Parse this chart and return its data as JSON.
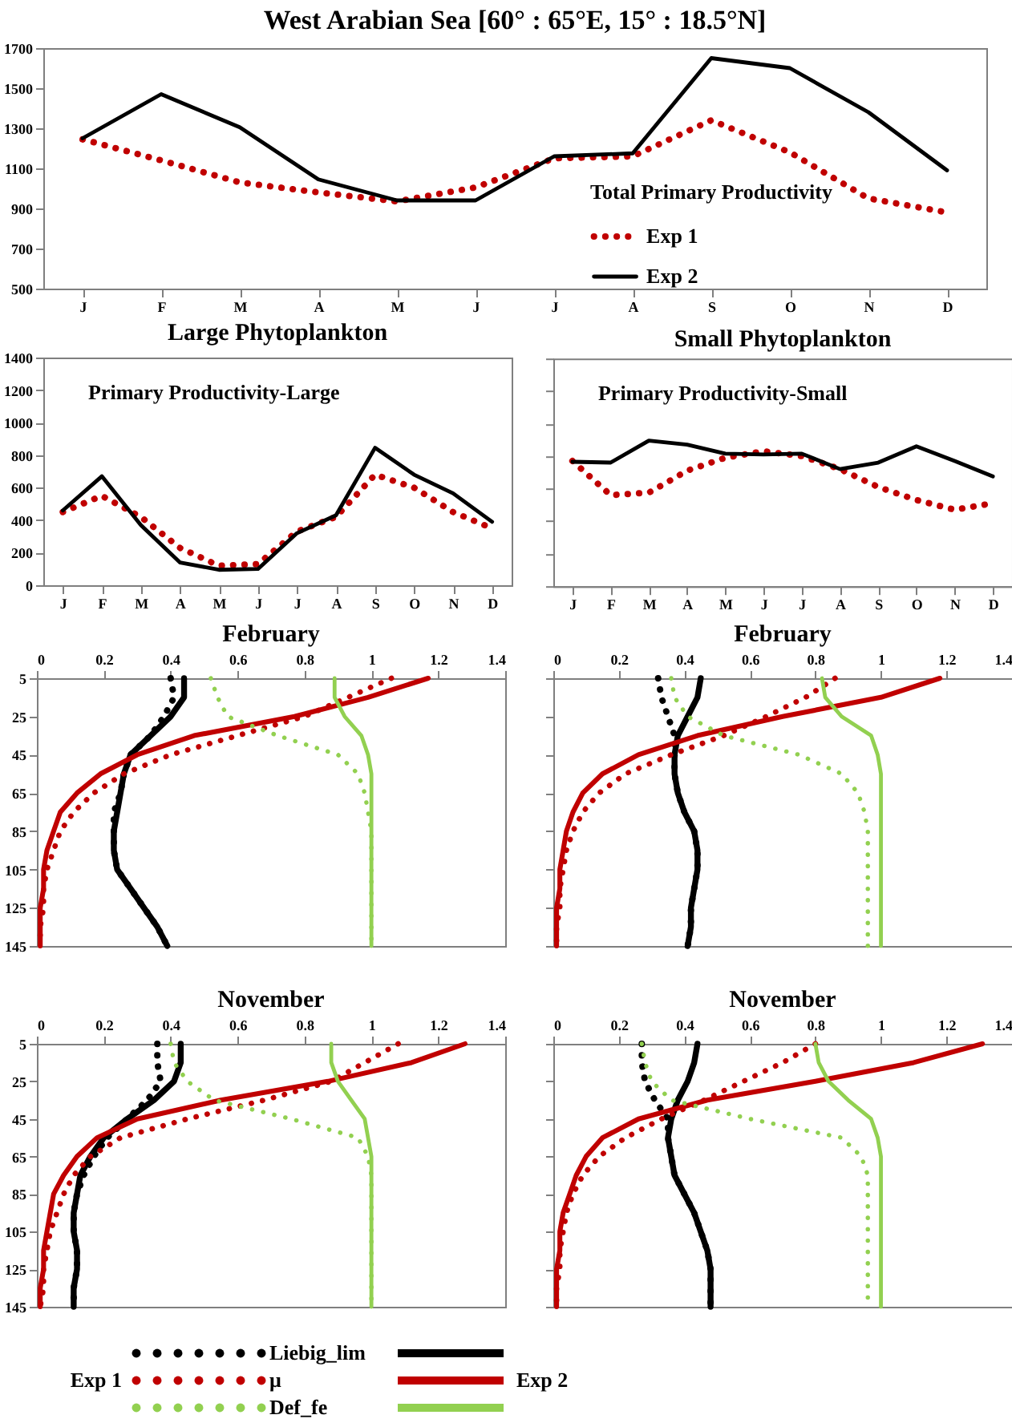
{
  "chart_data": [
    {
      "type": "line",
      "title": "West Arabian Sea [60° : 65°E, 15° : 18.5°N]",
      "legend_title": "Total Primary Productivity",
      "legend": "bottom right",
      "categories": [
        "J",
        "F",
        "M",
        "A",
        "M",
        "J",
        "J",
        "A",
        "S",
        "O",
        "N",
        "D"
      ],
      "ylim": [
        500,
        1700
      ],
      "yticks": [
        500,
        700,
        900,
        1100,
        1300,
        1500,
        1700
      ],
      "series": [
        {
          "name": "Exp 1",
          "color": "#c00000",
          "line_style": "dotted",
          "values": [
            1245,
            1140,
            1030,
            980,
            935,
            1005,
            1150,
            1160,
            1340,
            1180,
            950,
            880
          ]
        },
        {
          "name": "Exp 2",
          "color": "#000000",
          "line_style": "solid",
          "values": [
            1250,
            1470,
            1305,
            1045,
            940,
            940,
            1160,
            1175,
            1650,
            1600,
            1380,
            1090
          ]
        }
      ]
    },
    {
      "type": "line",
      "title": "Large Phytoplankton",
      "annotations": [
        "Primary Productivity-Large"
      ],
      "categories": [
        "J",
        "F",
        "M",
        "A",
        "M",
        "J",
        "J",
        "A",
        "S",
        "O",
        "N",
        "D"
      ],
      "ylim": [
        0,
        1400
      ],
      "yticks": [
        0,
        200,
        400,
        600,
        800,
        1000,
        1200,
        1400
      ],
      "series": [
        {
          "color": "#c00000",
          "line_style": "dotted",
          "values": [
            450,
            550,
            420,
            230,
            120,
            130,
            330,
            420,
            680,
            600,
            450,
            350
          ]
        },
        {
          "color": "#000000",
          "line_style": "solid",
          "values": [
            460,
            670,
            370,
            140,
            95,
            100,
            320,
            430,
            845,
            680,
            565,
            390
          ]
        }
      ]
    },
    {
      "type": "line",
      "title": "Small Phytoplankton",
      "annotations": [
        "Primary Productivity-Small"
      ],
      "tick_labels": "x",
      "categories": [
        "J",
        "F",
        "M",
        "A",
        "M",
        "J",
        "J",
        "A",
        "S",
        "O",
        "N",
        "D"
      ],
      "ylim": [
        0,
        1400
      ],
      "yticks": [
        0,
        200,
        400,
        600,
        800,
        1000,
        1200,
        1400
      ],
      "series": [
        {
          "color": "#c00000",
          "line_style": "dotted",
          "values": [
            770,
            560,
            575,
            710,
            790,
            830,
            800,
            720,
            610,
            530,
            470,
            510
          ]
        },
        {
          "color": "#000000",
          "line_style": "solid",
          "values": [
            765,
            760,
            895,
            870,
            815,
            810,
            815,
            720,
            760,
            860,
            770,
            675
          ]
        }
      ]
    },
    {
      "type": "line",
      "title": "February",
      "xlim": [
        0,
        1.4
      ],
      "xticks": [
        0,
        0.2,
        0.4,
        0.6,
        0.8,
        1,
        1.2,
        1.4
      ],
      "ylim": [
        145,
        5
      ],
      "yticks": [
        5,
        25,
        45,
        65,
        85,
        105,
        125,
        145
      ],
      "series": [
        {
          "color": "#000000",
          "line_style": "dotted",
          "x": [
            0.4,
            0.41,
            0.38,
            0.34,
            0.28,
            0.26,
            0.25,
            0.23,
            0.23,
            0.23,
            0.24,
            0.28,
            0.32,
            0.36,
            0.39
          ],
          "values": [
            5,
            15,
            25,
            35,
            45,
            55,
            65,
            75,
            85,
            95,
            105,
            115,
            125,
            135,
            145
          ]
        },
        {
          "color": "#000000",
          "line_style": "solid",
          "x": [
            0.44,
            0.44,
            0.4,
            0.34,
            0.28,
            0.26,
            0.25,
            0.24,
            0.23,
            0.23,
            0.24,
            0.28,
            0.32,
            0.36,
            0.39
          ],
          "values": [
            5,
            15,
            25,
            35,
            45,
            55,
            65,
            75,
            85,
            95,
            105,
            115,
            125,
            135,
            145
          ]
        },
        {
          "color": "#c00000",
          "line_style": "dotted",
          "x": [
            1.06,
            0.93,
            0.8,
            0.6,
            0.4,
            0.26,
            0.17,
            0.11,
            0.07,
            0.05,
            0.03,
            0.02,
            0.02,
            0.01,
            0.01
          ],
          "values": [
            5,
            15,
            25,
            35,
            45,
            55,
            65,
            75,
            85,
            95,
            105,
            115,
            125,
            135,
            145
          ]
        },
        {
          "color": "#c00000",
          "line_style": "solid",
          "x": [
            1.17,
            0.99,
            0.77,
            0.47,
            0.3,
            0.19,
            0.12,
            0.07,
            0.05,
            0.03,
            0.02,
            0.02,
            0.01,
            0.01,
            0.01
          ],
          "values": [
            5,
            15,
            25,
            35,
            45,
            55,
            65,
            75,
            85,
            95,
            105,
            115,
            125,
            135,
            145
          ]
        },
        {
          "color": "#92d050",
          "line_style": "dotted",
          "x": [
            0.52,
            0.54,
            0.57,
            0.72,
            0.9,
            0.96,
            0.98,
            0.99,
            1,
            1,
            1,
            1,
            1,
            1,
            1
          ],
          "values": [
            5,
            15,
            25,
            35,
            45,
            55,
            65,
            75,
            85,
            95,
            105,
            115,
            125,
            135,
            145
          ]
        },
        {
          "color": "#92d050",
          "line_style": "solid",
          "x": [
            0.89,
            0.89,
            0.92,
            0.97,
            0.99,
            1,
            1,
            1,
            1,
            1,
            1,
            1,
            1,
            1,
            1
          ],
          "values": [
            5,
            15,
            25,
            35,
            45,
            55,
            65,
            75,
            85,
            95,
            105,
            115,
            125,
            135,
            145
          ]
        }
      ]
    },
    {
      "type": "line",
      "title": "February",
      "tick_labels": "x",
      "xlim": [
        0,
        1.4
      ],
      "xticks": [
        0,
        0.2,
        0.4,
        0.6,
        0.8,
        1,
        1.2,
        1.4
      ],
      "ylim": [
        145,
        5
      ],
      "yticks": [
        5,
        25,
        45,
        65,
        85,
        105,
        125,
        145
      ],
      "series": [
        {
          "color": "#000000",
          "line_style": "dotted",
          "x": [
            0.32,
            0.33,
            0.35,
            0.37,
            0.37,
            0.37,
            0.38,
            0.4,
            0.43,
            0.44,
            0.44,
            0.43,
            0.42,
            0.42,
            0.41
          ],
          "values": [
            5,
            15,
            25,
            35,
            45,
            55,
            65,
            75,
            85,
            95,
            105,
            115,
            125,
            135,
            145
          ]
        },
        {
          "color": "#000000",
          "line_style": "solid",
          "x": [
            0.45,
            0.44,
            0.41,
            0.38,
            0.37,
            0.37,
            0.38,
            0.4,
            0.43,
            0.44,
            0.44,
            0.43,
            0.42,
            0.42,
            0.41
          ],
          "values": [
            5,
            15,
            25,
            35,
            45,
            55,
            65,
            75,
            85,
            95,
            105,
            115,
            125,
            135,
            145
          ]
        },
        {
          "color": "#c00000",
          "line_style": "dotted",
          "x": [
            0.86,
            0.77,
            0.65,
            0.52,
            0.36,
            0.22,
            0.14,
            0.09,
            0.06,
            0.04,
            0.03,
            0.02,
            0.02,
            0.01,
            0.01
          ],
          "values": [
            5,
            15,
            25,
            35,
            45,
            55,
            65,
            75,
            85,
            95,
            105,
            115,
            125,
            135,
            145
          ]
        },
        {
          "color": "#c00000",
          "line_style": "solid",
          "x": [
            1.18,
            1.0,
            0.7,
            0.44,
            0.26,
            0.15,
            0.09,
            0.06,
            0.04,
            0.03,
            0.02,
            0.02,
            0.01,
            0.01,
            0.01
          ],
          "values": [
            5,
            15,
            25,
            35,
            45,
            55,
            65,
            75,
            85,
            95,
            105,
            115,
            125,
            135,
            145
          ]
        },
        {
          "color": "#92d050",
          "line_style": "dotted",
          "x": [
            0.36,
            0.37,
            0.41,
            0.52,
            0.75,
            0.88,
            0.93,
            0.95,
            0.96,
            0.96,
            0.96,
            0.96,
            0.96,
            0.96,
            0.96
          ],
          "values": [
            5,
            15,
            25,
            35,
            45,
            55,
            65,
            75,
            85,
            95,
            105,
            115,
            125,
            135,
            145
          ]
        },
        {
          "color": "#92d050",
          "line_style": "solid",
          "x": [
            0.82,
            0.83,
            0.88,
            0.97,
            0.99,
            1,
            1,
            1,
            1,
            1,
            1,
            1,
            1,
            1,
            1
          ],
          "values": [
            5,
            15,
            25,
            35,
            45,
            55,
            65,
            75,
            85,
            95,
            105,
            115,
            125,
            135,
            145
          ]
        }
      ]
    },
    {
      "type": "line",
      "title": "November",
      "xlim": [
        0,
        1.4
      ],
      "xticks": [
        0,
        0.2,
        0.4,
        0.6,
        0.8,
        1,
        1.2,
        1.4
      ],
      "ylim": [
        145,
        5
      ],
      "yticks": [
        5,
        25,
        45,
        65,
        85,
        105,
        125,
        145
      ],
      "series": [
        {
          "color": "#000000",
          "line_style": "dotted",
          "x": [
            0.36,
            0.36,
            0.37,
            0.33,
            0.27,
            0.21,
            0.17,
            0.14,
            0.12,
            0.11,
            0.11,
            0.12,
            0.12,
            0.11,
            0.11
          ],
          "values": [
            5,
            15,
            25,
            35,
            45,
            55,
            65,
            75,
            85,
            95,
            105,
            115,
            125,
            135,
            145
          ]
        },
        {
          "color": "#000000",
          "line_style": "solid",
          "x": [
            0.43,
            0.43,
            0.41,
            0.35,
            0.27,
            0.2,
            0.16,
            0.13,
            0.12,
            0.11,
            0.11,
            0.12,
            0.12,
            0.11,
            0.11
          ],
          "values": [
            5,
            15,
            25,
            35,
            45,
            55,
            65,
            75,
            85,
            95,
            105,
            115,
            125,
            135,
            145
          ]
        },
        {
          "color": "#c00000",
          "line_style": "dotted",
          "x": [
            1.08,
            0.98,
            0.88,
            0.68,
            0.45,
            0.25,
            0.16,
            0.11,
            0.08,
            0.06,
            0.04,
            0.03,
            0.02,
            0.02,
            0.01
          ],
          "values": [
            5,
            15,
            25,
            35,
            45,
            55,
            65,
            75,
            85,
            95,
            105,
            115,
            125,
            135,
            145
          ]
        },
        {
          "color": "#c00000",
          "line_style": "solid",
          "x": [
            1.28,
            1.12,
            0.87,
            0.55,
            0.3,
            0.18,
            0.12,
            0.08,
            0.05,
            0.04,
            0.03,
            0.02,
            0.02,
            0.01,
            0.01
          ],
          "values": [
            5,
            15,
            25,
            35,
            45,
            55,
            65,
            75,
            85,
            95,
            105,
            115,
            125,
            135,
            145
          ]
        },
        {
          "color": "#92d050",
          "line_style": "dotted",
          "x": [
            0.4,
            0.41,
            0.45,
            0.53,
            0.76,
            0.96,
            0.99,
            1,
            1,
            1,
            1,
            1,
            1,
            1,
            1
          ],
          "values": [
            5,
            15,
            25,
            35,
            45,
            55,
            65,
            75,
            85,
            95,
            105,
            115,
            125,
            135,
            145
          ]
        },
        {
          "color": "#92d050",
          "line_style": "solid",
          "x": [
            0.88,
            0.88,
            0.9,
            0.94,
            0.98,
            0.99,
            1,
            1,
            1,
            1,
            1,
            1,
            1,
            1,
            1
          ],
          "values": [
            5,
            15,
            25,
            35,
            45,
            55,
            65,
            75,
            85,
            95,
            105,
            115,
            125,
            135,
            145
          ]
        }
      ]
    },
    {
      "type": "line",
      "title": "November",
      "tick_labels": "x",
      "legend": "bottom",
      "annotations": [
        "Exp 1",
        "Exp 2"
      ],
      "xlim": [
        0,
        1.4
      ],
      "xticks": [
        0,
        0.2,
        0.4,
        0.6,
        0.8,
        1,
        1.2,
        1.4
      ],
      "ylim": [
        145,
        5
      ],
      "yticks": [
        5,
        25,
        45,
        65,
        85,
        105,
        125,
        145
      ],
      "series": [
        {
          "name": "Liebig_lim",
          "color": "#000000",
          "line_style": "dotted",
          "x": [
            0.27,
            0.27,
            0.28,
            0.31,
            0.35,
            0.35,
            0.36,
            0.37,
            0.4,
            0.43,
            0.45,
            0.47,
            0.48,
            0.48,
            0.48
          ],
          "values": [
            5,
            15,
            25,
            35,
            45,
            55,
            65,
            75,
            85,
            95,
            105,
            115,
            125,
            135,
            145
          ]
        },
        {
          "color": "#000000",
          "line_style": "solid",
          "x": [
            0.44,
            0.43,
            0.41,
            0.38,
            0.36,
            0.35,
            0.36,
            0.37,
            0.4,
            0.43,
            0.45,
            0.47,
            0.48,
            0.48,
            0.48
          ],
          "values": [
            5,
            15,
            25,
            35,
            45,
            55,
            65,
            75,
            85,
            95,
            105,
            115,
            125,
            135,
            145
          ]
        },
        {
          "name": "μ",
          "color": "#c00000",
          "line_style": "dotted",
          "x": [
            0.8,
            0.7,
            0.58,
            0.46,
            0.33,
            0.22,
            0.14,
            0.09,
            0.06,
            0.04,
            0.03,
            0.02,
            0.02,
            0.01,
            0.01
          ],
          "values": [
            5,
            15,
            25,
            35,
            45,
            55,
            65,
            75,
            85,
            95,
            105,
            115,
            125,
            135,
            145
          ]
        },
        {
          "color": "#c00000",
          "line_style": "solid",
          "x": [
            1.31,
            1.1,
            0.8,
            0.47,
            0.26,
            0.15,
            0.1,
            0.07,
            0.05,
            0.03,
            0.02,
            0.02,
            0.01,
            0.01,
            0.01
          ],
          "values": [
            5,
            15,
            25,
            35,
            45,
            55,
            65,
            75,
            85,
            95,
            105,
            115,
            125,
            135,
            145
          ]
        },
        {
          "name": "Def_fe",
          "color": "#92d050",
          "line_style": "dotted",
          "x": [
            0.27,
            0.28,
            0.3,
            0.36,
            0.6,
            0.88,
            0.94,
            0.96,
            0.96,
            0.96,
            0.96,
            0.96,
            0.96,
            0.96,
            0.96
          ],
          "values": [
            5,
            15,
            25,
            35,
            45,
            55,
            65,
            75,
            85,
            95,
            105,
            115,
            125,
            135,
            145
          ]
        },
        {
          "color": "#92d050",
          "line_style": "solid",
          "x": [
            0.8,
            0.81,
            0.84,
            0.9,
            0.97,
            0.99,
            1,
            1,
            1,
            1,
            1,
            1,
            1,
            1,
            1
          ],
          "values": [
            5,
            15,
            25,
            35,
            45,
            55,
            65,
            75,
            85,
            95,
            105,
            115,
            125,
            135,
            145
          ]
        }
      ]
    }
  ]
}
